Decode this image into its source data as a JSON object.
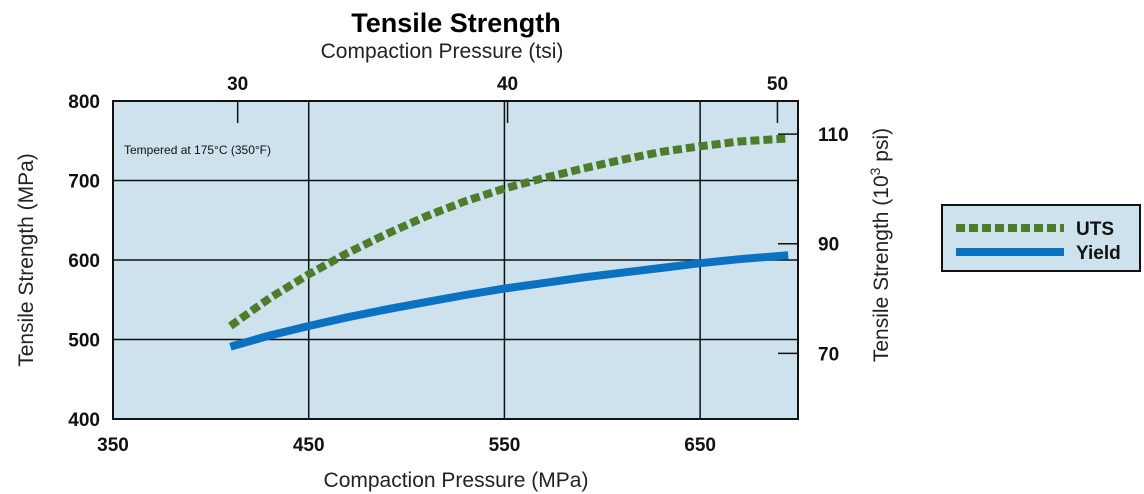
{
  "chart_data": {
    "type": "line",
    "title": "Tensile Strength",
    "subtitle": "Compaction Pressure (tsi)",
    "xlabel": "Compaction Pressure (MPa)",
    "ylabel": "Tensile Strength (MPa)",
    "y2label_main": "Tensile Strength (10",
    "y2label_sup": "3",
    "y2label_end": " psi)",
    "annotation": "Tempered at 175°C (350°F)",
    "xlim": [
      350,
      700
    ],
    "ylim": [
      400,
      800
    ],
    "x_ticks": [
      "350",
      "450",
      "550",
      "650"
    ],
    "y_ticks": [
      "400",
      "500",
      "600",
      "700",
      "800"
    ],
    "x2_ticks": [
      {
        "label": "30",
        "mpa": 413.7
      },
      {
        "label": "40",
        "mpa": 551.6
      },
      {
        "label": "50",
        "mpa": 689.5
      }
    ],
    "y2_ticks": [
      {
        "label": "70",
        "mpa": 482.6
      },
      {
        "label": "90",
        "mpa": 620.5
      },
      {
        "label": "110",
        "mpa": 758.4
      }
    ],
    "grid": true,
    "legend_position": "right",
    "colors": {
      "plot_bg": "#cde2ed",
      "uts": "#4e7d2a",
      "yield": "#0a72c0"
    },
    "series": [
      {
        "name": "UTS",
        "style": "dotted",
        "x": [
          410,
          430,
          450,
          470,
          490,
          510,
          530,
          550,
          570,
          590,
          610,
          630,
          650,
          670,
          695
        ],
        "y": [
          517,
          552,
          582,
          609,
          633,
          655,
          674,
          690,
          703,
          715,
          726,
          736,
          743,
          749,
          753
        ]
      },
      {
        "name": "Yield",
        "style": "solid",
        "x": [
          410,
          430,
          450,
          470,
          490,
          510,
          530,
          550,
          570,
          590,
          610,
          630,
          650,
          670,
          695
        ],
        "y": [
          491,
          505,
          517,
          528,
          538,
          547,
          556,
          564,
          571,
          578,
          584,
          590,
          596,
          601,
          606
        ]
      }
    ]
  }
}
